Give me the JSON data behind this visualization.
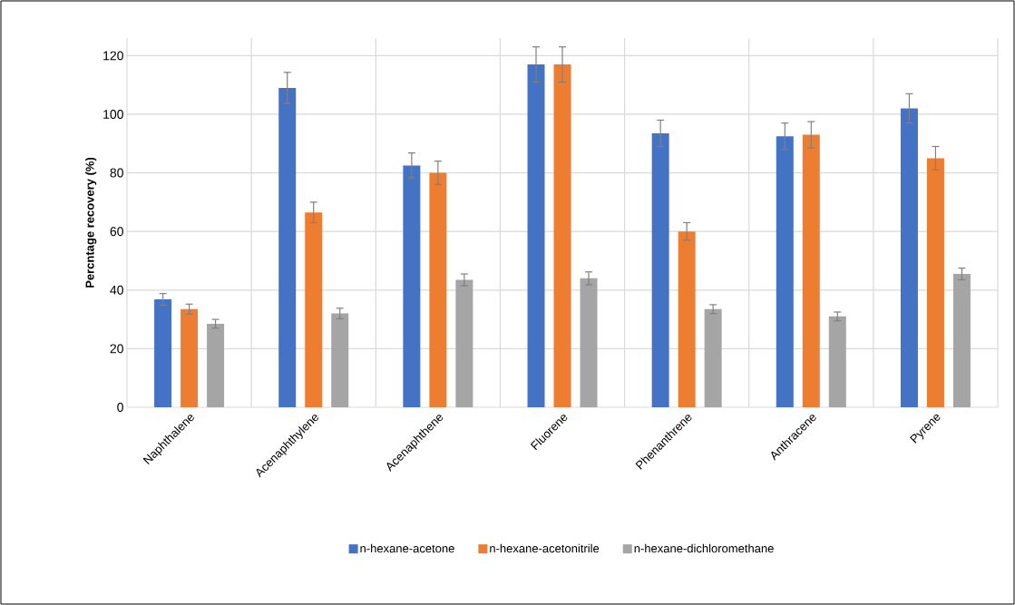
{
  "chart_data": {
    "type": "bar",
    "ylabel": "Percntage recovery (%)",
    "categories": [
      "Naphthalene",
      "Acenaphthylene",
      "Acenaphthene",
      "Fluorene",
      "Phenanthrene",
      "Anthracene",
      "Pyrene"
    ],
    "series": [
      {
        "name": "n-hexane-acetone",
        "color": "#4472c4",
        "values": [
          36.8,
          109,
          82.5,
          117,
          93.5,
          92.5,
          102
        ],
        "errors": [
          2,
          5.3,
          4.3,
          6,
          4.5,
          4.5,
          5
        ]
      },
      {
        "name": "n-hexane-acetonitrile",
        "color": "#ed7d31",
        "values": [
          33.5,
          66.5,
          80,
          117,
          60,
          93,
          85
        ],
        "errors": [
          1.7,
          3.5,
          4,
          6,
          3,
          4.5,
          4
        ]
      },
      {
        "name": "n-hexane-dichloromethane",
        "color": "#a5a5a5",
        "values": [
          28.5,
          32,
          43.5,
          44,
          33.5,
          31,
          45.5
        ],
        "errors": [
          1.5,
          1.8,
          2,
          2.2,
          1.5,
          1.5,
          2
        ]
      }
    ],
    "ylim": [
      0,
      126
    ],
    "yticks": [
      0,
      20,
      40,
      60,
      80,
      100,
      120
    ],
    "grid": true,
    "legend": "bottom"
  }
}
